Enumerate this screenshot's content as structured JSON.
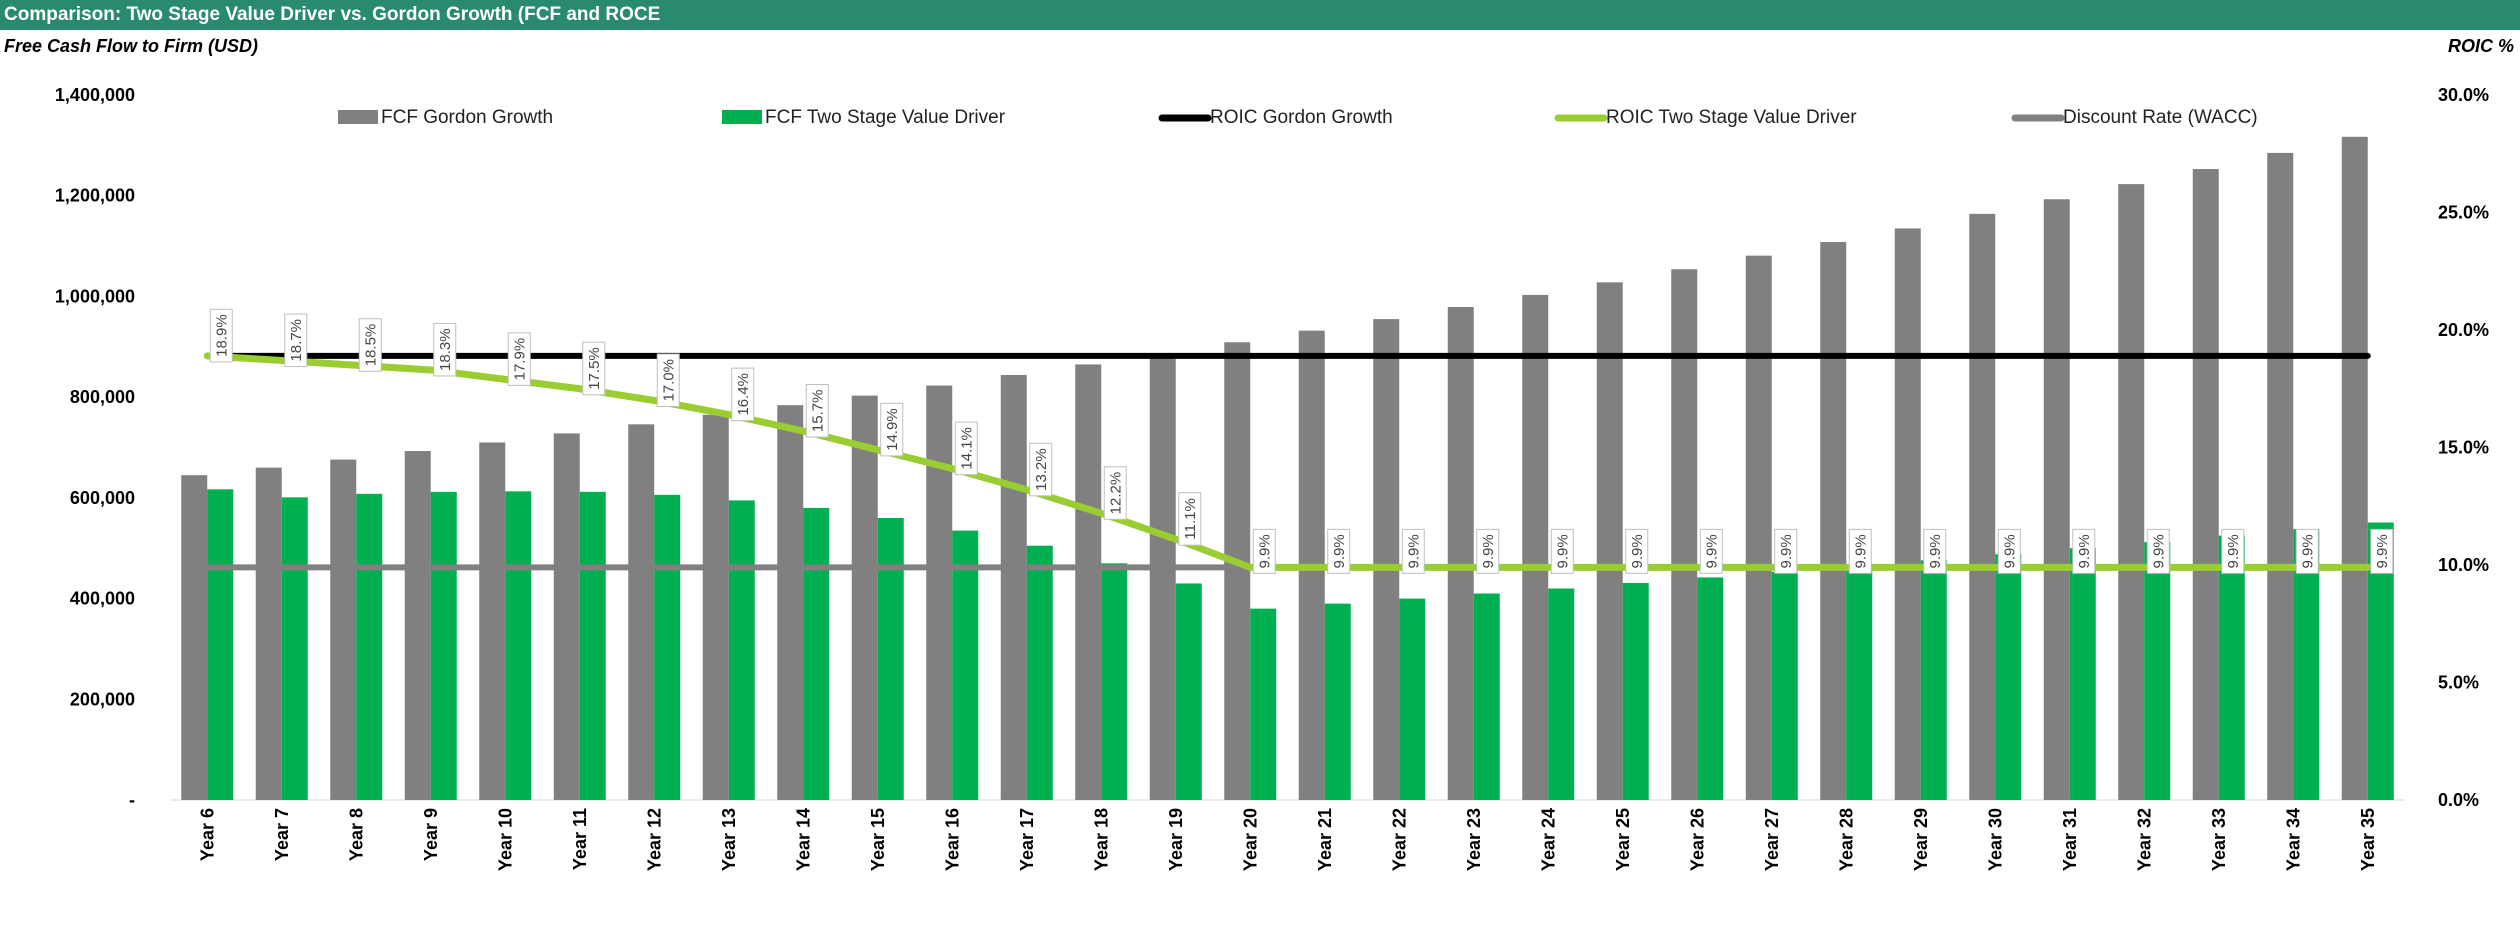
{
  "title": "Comparison: Two Stage Value Driver vs. Gordon Growth (FCF and ROCE",
  "colors": {
    "title_bg": "#2a8a6e",
    "gordon_bar": "#808080",
    "twostage_bar": "#00b050",
    "roic_gordon": "#000000",
    "roic_twostage": "#9acd32",
    "wacc": "#808080"
  },
  "chart_data": {
    "type": "bar",
    "title": "",
    "ylabel": "Free Cash Flow to Firm (USD)",
    "y2label": "ROIC %",
    "ylim": [
      0,
      1400000
    ],
    "y2lim": [
      0,
      0.3
    ],
    "y_ticks": [
      "-",
      "200,000",
      "400,000",
      "600,000",
      "800,000",
      "1,000,000",
      "1,200,000",
      "1,400,000"
    ],
    "y2_ticks": [
      "0.0%",
      "5.0%",
      "10.0%",
      "15.0%",
      "20.0%",
      "25.0%",
      "30.0%"
    ],
    "categories": [
      "Year 6",
      "Year 7",
      "Year 8",
      "Year 9",
      "Year 10",
      "Year 11",
      "Year 12",
      "Year 13",
      "Year 14",
      "Year 15",
      "Year 16",
      "Year 17",
      "Year 18",
      "Year 19",
      "Year 20",
      "Year 21",
      "Year 22",
      "Year 23",
      "Year 24",
      "Year 25",
      "Year 26",
      "Year 27",
      "Year 28",
      "Year 29",
      "Year 30",
      "Year 31",
      "Year 32",
      "Year 33",
      "Year 34",
      "Year 35"
    ],
    "legend_position": "top",
    "series": [
      {
        "name": "FCF Gordon Growth",
        "kind": "bar",
        "axis": "left",
        "values": [
          645000,
          660000,
          676000,
          693000,
          710000,
          728000,
          746000,
          765000,
          784000,
          803000,
          823000,
          844000,
          865000,
          887000,
          909000,
          932000,
          955000,
          979000,
          1003000,
          1028000,
          1054000,
          1081000,
          1108000,
          1135000,
          1164000,
          1193000,
          1223000,
          1253000,
          1285000,
          1317000
        ]
      },
      {
        "name": "FCF Two Stage Value Driver",
        "kind": "bar",
        "axis": "left",
        "values": [
          617000,
          601000,
          608000,
          612000,
          613000,
          612000,
          606000,
          595000,
          580000,
          560000,
          535000,
          505000,
          470000,
          430000,
          380000,
          390000,
          400000,
          410000,
          420000,
          431000,
          442000,
          453000,
          464000,
          476000,
          488000,
          500000,
          512000,
          525000,
          538000,
          551000
        ]
      },
      {
        "name": "ROIC Gordon Growth",
        "kind": "line",
        "axis": "right",
        "values": [
          0.189,
          0.189,
          0.189,
          0.189,
          0.189,
          0.189,
          0.189,
          0.189,
          0.189,
          0.189,
          0.189,
          0.189,
          0.189,
          0.189,
          0.189,
          0.189,
          0.189,
          0.189,
          0.189,
          0.189,
          0.189,
          0.189,
          0.189,
          0.189,
          0.189,
          0.189,
          0.189,
          0.189,
          0.189,
          0.189
        ]
      },
      {
        "name": "ROIC Two Stage Value Driver",
        "kind": "line",
        "axis": "right",
        "values": [
          0.189,
          0.187,
          0.185,
          0.183,
          0.179,
          0.175,
          0.17,
          0.164,
          0.157,
          0.149,
          0.141,
          0.132,
          0.122,
          0.111,
          0.099,
          0.099,
          0.099,
          0.099,
          0.099,
          0.099,
          0.099,
          0.099,
          0.099,
          0.099,
          0.099,
          0.099,
          0.099,
          0.099,
          0.099,
          0.099
        ],
        "data_labels": [
          "18.9%",
          "18.7%",
          "18.5%",
          "18.3%",
          "17.9%",
          "17.5%",
          "17.0%",
          "16.4%",
          "15.7%",
          "14.9%",
          "14.1%",
          "13.2%",
          "12.2%",
          "11.1%",
          "9.9%",
          "9.9%",
          "9.9%",
          "9.9%",
          "9.9%",
          "9.9%",
          "9.9%",
          "9.9%",
          "9.9%",
          "9.9%",
          "9.9%",
          "9.9%",
          "9.9%",
          "9.9%",
          "9.9%",
          "9.9%"
        ]
      },
      {
        "name": "Discount Rate (WACC)",
        "kind": "line",
        "axis": "right",
        "values": [
          0.099,
          0.099,
          0.099,
          0.099,
          0.099,
          0.099,
          0.099,
          0.099,
          0.099,
          0.099,
          0.099,
          0.099,
          0.099,
          0.099,
          0.099,
          0.099,
          0.099,
          0.099,
          0.099,
          0.099,
          0.099,
          0.099,
          0.099,
          0.099,
          0.099,
          0.099,
          0.099,
          0.099,
          0.099,
          0.099
        ]
      }
    ]
  }
}
